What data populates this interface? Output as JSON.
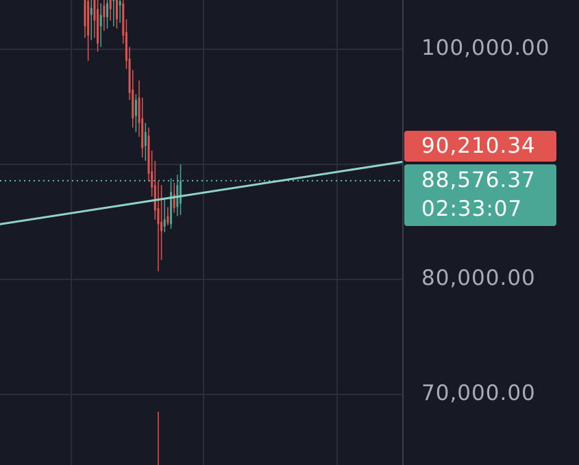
{
  "chart_data": {
    "type": "candlestick",
    "ylim": [
      65000,
      105000
    ],
    "grid": true,
    "price_axis": {
      "ticks": [
        {
          "value": 100000,
          "label": "100,000.00"
        },
        {
          "value": 80000,
          "label": "80,000.00"
        },
        {
          "value": 70000,
          "label": "70,000.00"
        }
      ]
    },
    "price_badges": {
      "line_price": {
        "value": 90210.34,
        "label": "90,210.34"
      },
      "last_price": {
        "value": 88576.37,
        "label": "88,576.37",
        "countdown": "02:33:07"
      }
    },
    "trendline": {
      "start_price": 84800,
      "end_price": 90210.34
    },
    "candles": [
      {
        "o": 104800,
        "h": 105200,
        "l": 101000,
        "c": 102000
      },
      {
        "o": 104200,
        "h": 104800,
        "l": 99000,
        "c": 101200
      },
      {
        "o": 103000,
        "h": 104500,
        "l": 100800,
        "c": 103600
      },
      {
        "o": 104500,
        "h": 105000,
        "l": 101000,
        "c": 102500
      },
      {
        "o": 103500,
        "h": 104600,
        "l": 99800,
        "c": 100500
      },
      {
        "o": 102000,
        "h": 104000,
        "l": 100200,
        "c": 103000
      },
      {
        "o": 103800,
        "h": 104500,
        "l": 101600,
        "c": 102800
      },
      {
        "o": 102800,
        "h": 105000,
        "l": 101800,
        "c": 104000
      },
      {
        "o": 105000,
        "h": 105200,
        "l": 102500,
        "c": 103500
      },
      {
        "o": 104200,
        "h": 105100,
        "l": 102000,
        "c": 104600
      },
      {
        "o": 104800,
        "h": 105200,
        "l": 101800,
        "c": 102600
      },
      {
        "o": 103800,
        "h": 104900,
        "l": 102300,
        "c": 104200
      },
      {
        "o": 104000,
        "h": 104300,
        "l": 100500,
        "c": 101200
      },
      {
        "o": 101500,
        "h": 102600,
        "l": 98300,
        "c": 99000
      },
      {
        "o": 99200,
        "h": 100200,
        "l": 95600,
        "c": 96200
      },
      {
        "o": 96500,
        "h": 98200,
        "l": 93200,
        "c": 94000
      },
      {
        "o": 94200,
        "h": 96100,
        "l": 92800,
        "c": 95600
      },
      {
        "o": 95800,
        "h": 97300,
        "l": 92400,
        "c": 93600
      },
      {
        "o": 94000,
        "h": 95800,
        "l": 90600,
        "c": 91400
      },
      {
        "o": 91600,
        "h": 93600,
        "l": 90300,
        "c": 92800
      },
      {
        "o": 92500,
        "h": 93200,
        "l": 88500,
        "c": 89200
      },
      {
        "o": 89400,
        "h": 91200,
        "l": 87200,
        "c": 88000
      },
      {
        "o": 88200,
        "h": 90300,
        "l": 85200,
        "c": 86000
      },
      {
        "o": 86200,
        "h": 88500,
        "l": 80700,
        "c": 84800
      },
      {
        "o": 85000,
        "h": 88200,
        "l": 81700,
        "c": 84200
      },
      {
        "o": 84600,
        "h": 87100,
        "l": 84100,
        "c": 85200
      },
      {
        "o": 85500,
        "h": 86300,
        "l": 84700,
        "c": 84900
      },
      {
        "o": 84800,
        "h": 88800,
        "l": 84400,
        "c": 87600
      },
      {
        "o": 87400,
        "h": 88400,
        "l": 85800,
        "c": 86200
      },
      {
        "o": 86300,
        "h": 89100,
        "l": 85500,
        "c": 88200
      },
      {
        "o": 86600,
        "h": 90000,
        "l": 85600,
        "c": 88576
      }
    ],
    "offscreen_wick": {
      "high": 68500
    }
  }
}
